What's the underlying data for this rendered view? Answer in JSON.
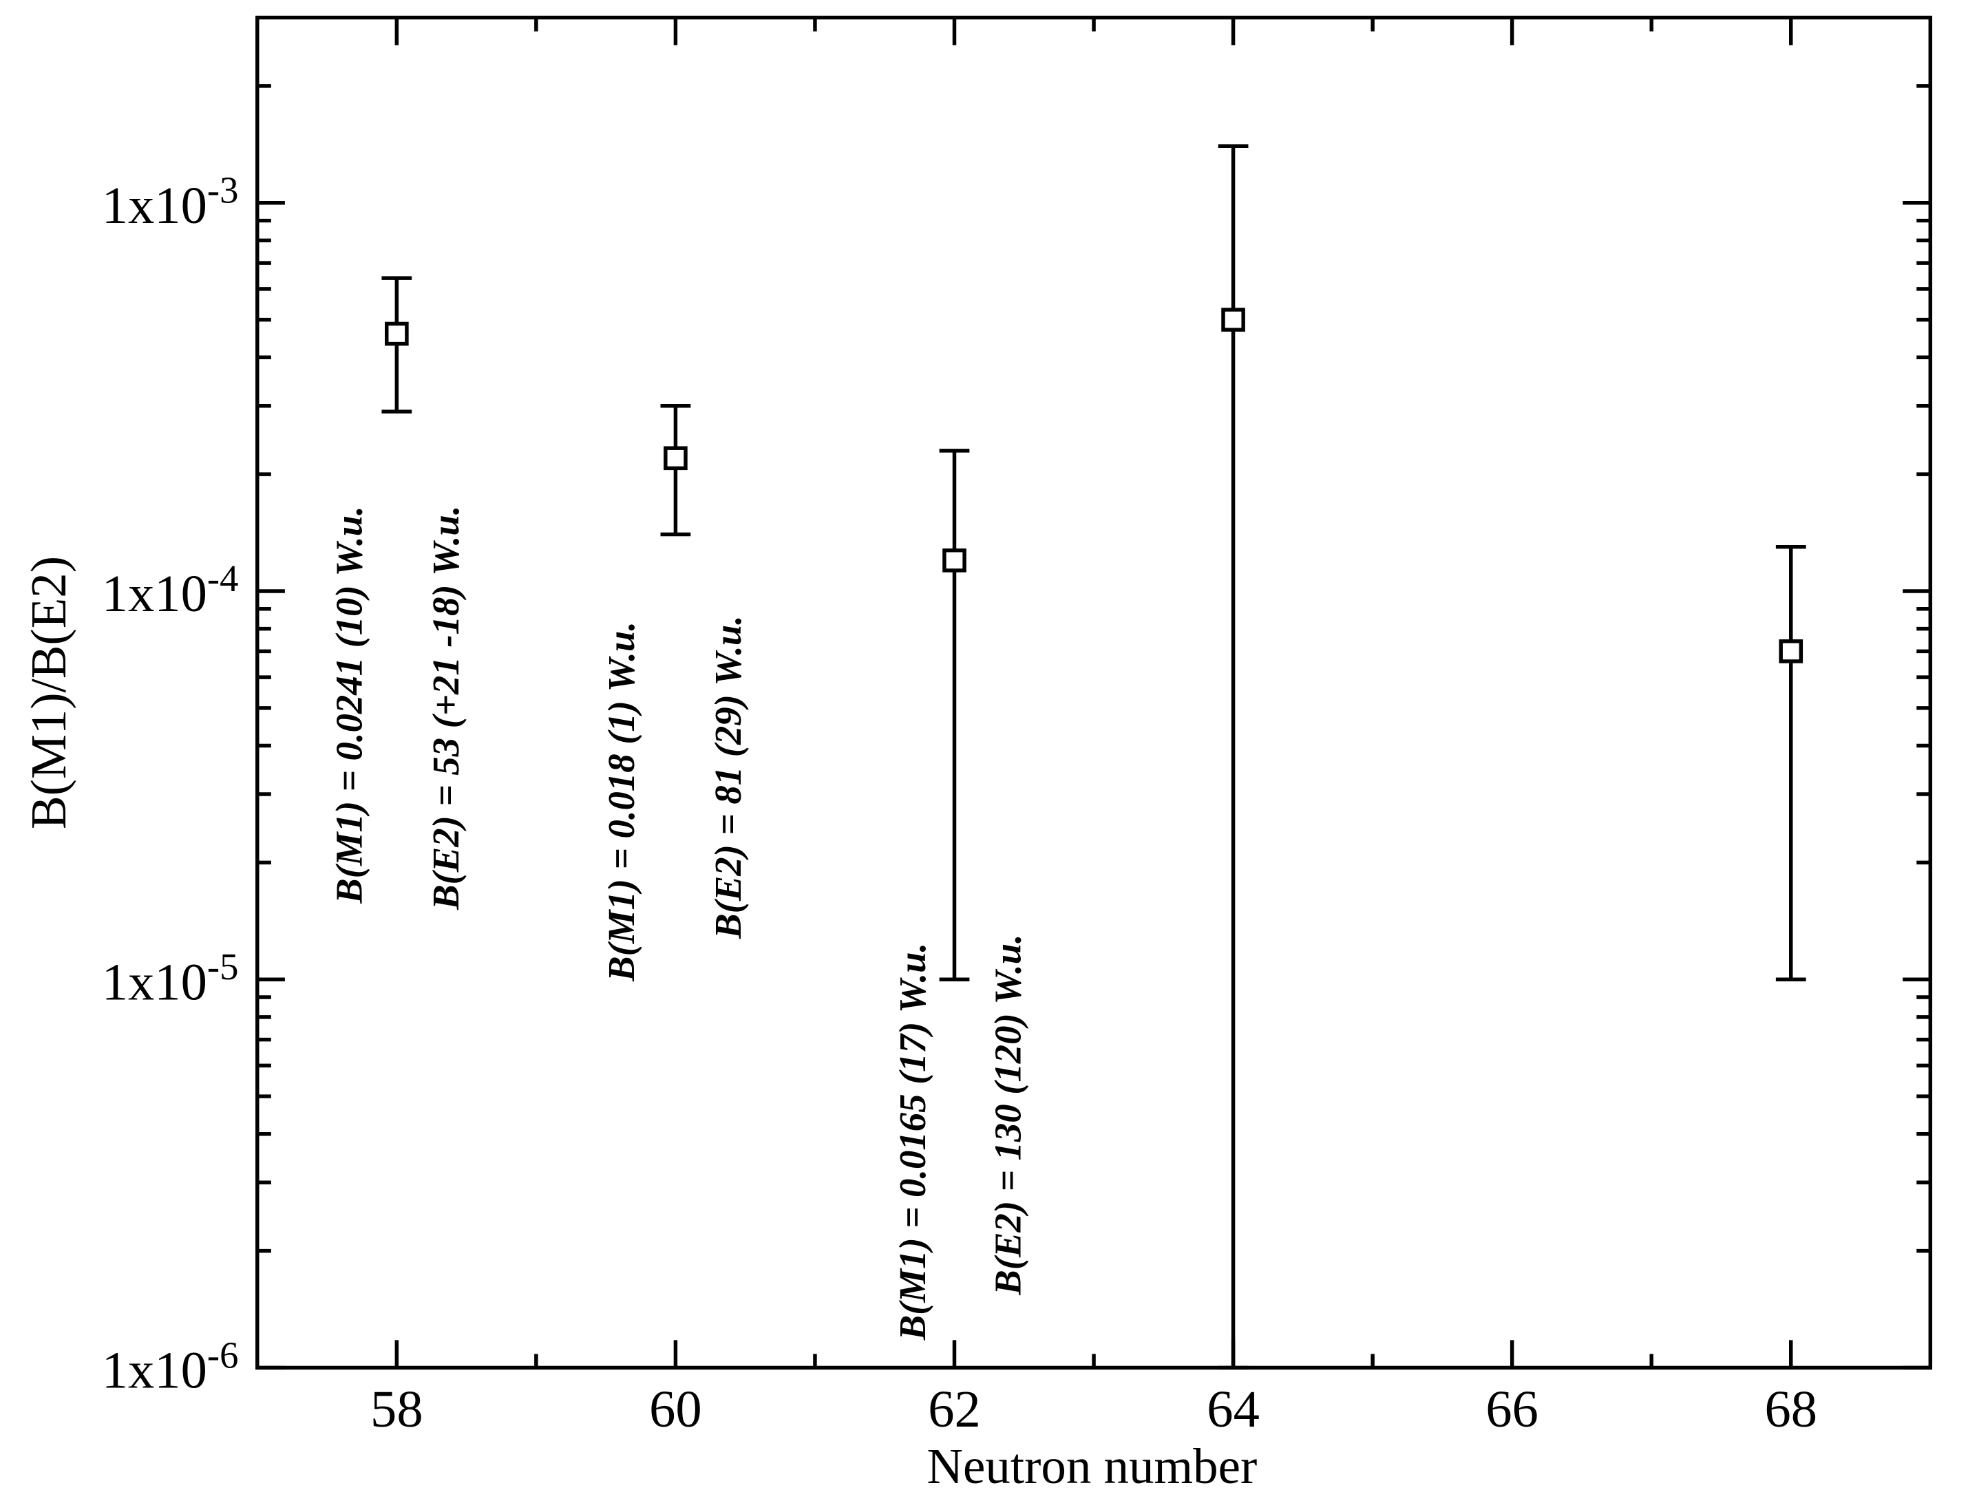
{
  "chart_data": {
    "type": "scatter",
    "x_label": "Neutron number",
    "y_label": "B(M1)/B(E2)",
    "y_scale": "log",
    "xlim": [
      57,
      69
    ],
    "ylim": [
      1e-06,
      0.003
    ],
    "xticks": [
      58,
      60,
      62,
      64,
      66,
      68
    ],
    "xminorticks": [
      59,
      61,
      63,
      65,
      67
    ],
    "yticks": [
      {
        "value": 1e-06,
        "label": "1x10",
        "exponent": "-6"
      },
      {
        "value": 1e-05,
        "label": "1x10",
        "exponent": "-5"
      },
      {
        "value": 0.0001,
        "label": "1x10",
        "exponent": "-4"
      },
      {
        "value": 0.001,
        "label": "1x10",
        "exponent": "-3"
      }
    ],
    "yminorticks": [
      2e-06,
      3e-06,
      4e-06,
      5e-06,
      6e-06,
      7e-06,
      8e-06,
      9e-06,
      2e-05,
      3e-05,
      4e-05,
      5e-05,
      6e-05,
      7e-05,
      8e-05,
      9e-05,
      0.0002,
      0.0003,
      0.0004,
      0.0005,
      0.0006,
      0.0007,
      0.0008,
      0.0009,
      0.002
    ],
    "series": [
      {
        "color": "#000000",
        "x": [
          58,
          60,
          62,
          64,
          68
        ],
        "values": [
          0.00046,
          0.00022,
          0.00012,
          0.0005,
          7e-05
        ],
        "lower": [
          0.00029,
          0.00014,
          1e-05,
          1e-06,
          1e-05
        ],
        "upper": [
          0.00064,
          0.0003,
          0.00023,
          0.0014,
          0.00013
        ]
      }
    ],
    "annotations": [
      "B(M1) = 0.0241 (10) W.u.",
      "B(E2) = 53 (+21 -18) W.u.",
      "B(M1) = 0.018 (1) W.u.",
      "B(E2) = 81 (29) W.u.",
      "B(M1) = 0.0165 (17) W.u.",
      "B(E2) = 130 (120) W.u."
    ]
  }
}
